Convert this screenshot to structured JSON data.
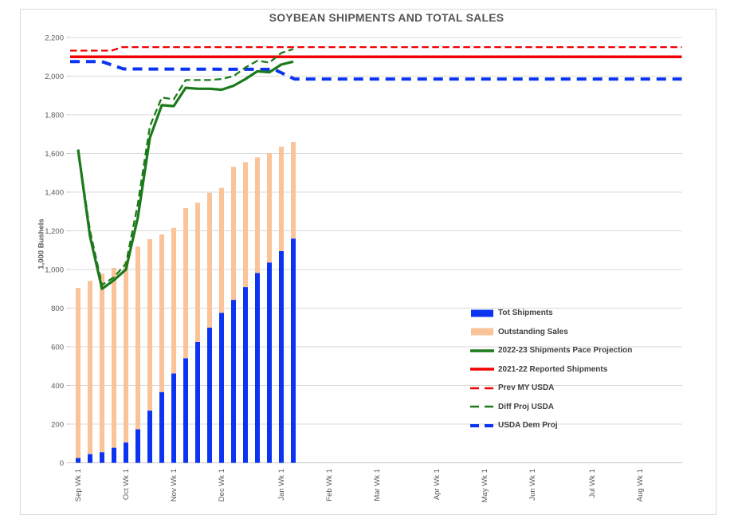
{
  "title": "SOYBEAN SHIPMENTS AND TOTAL SALES",
  "y_axis": {
    "title": "1,000 Bushels",
    "tick_labels": [
      "0",
      "200",
      "400",
      "600",
      "800",
      "1,000",
      "1,200",
      "1,400",
      "1,600",
      "1,800",
      "2,000",
      "2,200"
    ]
  },
  "x_axis": {
    "month_labels": [
      "Sep Wk 1",
      "Oct Wk 1",
      "Nov Wk 1",
      "Dec Wk 1",
      "Jan Wk 1",
      "Feb Wk 1",
      "Mar Wk 1",
      "Apr Wk 1",
      "May Wk 1",
      "Jun Wk 1",
      "Jul Wk 1",
      "Aug Wk 1"
    ],
    "weeks_per_month": [
      4,
      4,
      4,
      5,
      4,
      4,
      5,
      4,
      4,
      5,
      4,
      4
    ]
  },
  "colors": {
    "bar_blue": "#0B34F2",
    "bar_tan": "#FAC398",
    "green": "#1B7A1B",
    "red": "#F20000",
    "grid": "#D9D9D9",
    "axis_line": "#C6C6C6",
    "axis_text": "#595959",
    "title_text": "#565656",
    "legend_text": "#404040"
  },
  "legend": {
    "items": [
      {
        "label": "Tot Shipments",
        "swatch": "bar",
        "color": "#0B34F2"
      },
      {
        "label": "Outstanding Sales",
        "swatch": "bar",
        "color": "#FAC398"
      },
      {
        "label": "2022-23 Shipments Pace Projection",
        "swatch": "line-solid",
        "color": "#1B7A1B"
      },
      {
        "label": "2021-22 Reported Shipments",
        "swatch": "line-solid",
        "color": "#F20000"
      },
      {
        "label": "Prev MY USDA",
        "swatch": "line-dashed",
        "color": "#F20000"
      },
      {
        "label": "Diff Proj USDA",
        "swatch": "line-dashed",
        "color": "#1B7A1B"
      },
      {
        "label": "USDA Dem Proj",
        "swatch": "line-dashed-thick",
        "color": "#0B34F2"
      }
    ]
  },
  "chart_data": {
    "type": "combo (stacked weekly bars + horizontal projection lines)",
    "title": "SOYBEAN SHIPMENTS AND TOTAL SALES",
    "ylabel": "1,000 Bushels",
    "ylim": [
      0,
      2200
    ],
    "ytick_step": 200,
    "x_unit": "marketing-year week, Sep Wk 1 through Aug; bars plotted weekly Sep through mid-Jan (19 weeks)",
    "grid": "horizontal only",
    "legend_position": "middle-right, no border",
    "bar_series": [
      {
        "name": "Tot Shipments",
        "stack_order": 0,
        "color": "#0B34F2",
        "values": [
          25,
          45,
          55,
          78,
          105,
          174,
          270,
          366,
          462,
          541,
          625,
          699,
          776,
          843,
          909,
          982,
          1036,
          1095,
          1160
        ]
      },
      {
        "name": "Outstanding Sales",
        "stack_order": 1,
        "color": "#FAC398",
        "values": [
          880,
          896,
          923,
          930,
          935,
          944,
          887,
          815,
          753,
          777,
          720,
          698,
          646,
          688,
          646,
          598,
          565,
          540,
          499
        ]
      }
    ],
    "stacked_totals": [
      905,
      941,
      978,
      1008,
      1040,
      1118,
      1157,
      1181,
      1215,
      1318,
      1345,
      1397,
      1422,
      1531,
      1555,
      1580,
      1601,
      1635,
      1659
    ],
    "line_series": [
      {
        "name": "Prev MY USDA",
        "style": "dashed",
        "color": "#F20000",
        "points": [
          [
            -0.67,
            2132
          ],
          [
            2.8,
            2132
          ],
          [
            3.7,
            2150
          ],
          [
            50.5,
            2150
          ]
        ]
      },
      {
        "name": "USDA Dem Proj",
        "style": "dashed-thick",
        "color": "#0B34F2",
        "points": [
          [
            -0.67,
            2075
          ],
          [
            2.0,
            2075
          ],
          [
            3.8,
            2037
          ],
          [
            16.4,
            2035
          ],
          [
            18.1,
            1985
          ],
          [
            50.5,
            1985
          ]
        ]
      },
      {
        "name": "2021-22 Reported Shipments",
        "style": "solid-thick",
        "color": "#F20000",
        "points": [
          [
            -0.67,
            2100
          ],
          [
            50.5,
            2100
          ]
        ]
      },
      {
        "name": "Diff Proj USDA",
        "style": "dashed",
        "color": "#1B7A1B",
        "weekly_values": [
          1620,
          1200,
          920,
          960,
          1030,
          1340,
          1740,
          1890,
          1880,
          1980,
          1980,
          1980,
          1985,
          2000,
          2045,
          2080,
          2070,
          2120,
          2140
        ]
      },
      {
        "name": "2022-23 Shipments Pace Projection",
        "style": "solid",
        "color": "#1B7A1B",
        "weekly_values": [
          1620,
          1170,
          900,
          945,
          1000,
          1270,
          1680,
          1850,
          1845,
          1940,
          1935,
          1935,
          1930,
          1950,
          1985,
          2025,
          2020,
          2060,
          2075
        ]
      }
    ]
  }
}
